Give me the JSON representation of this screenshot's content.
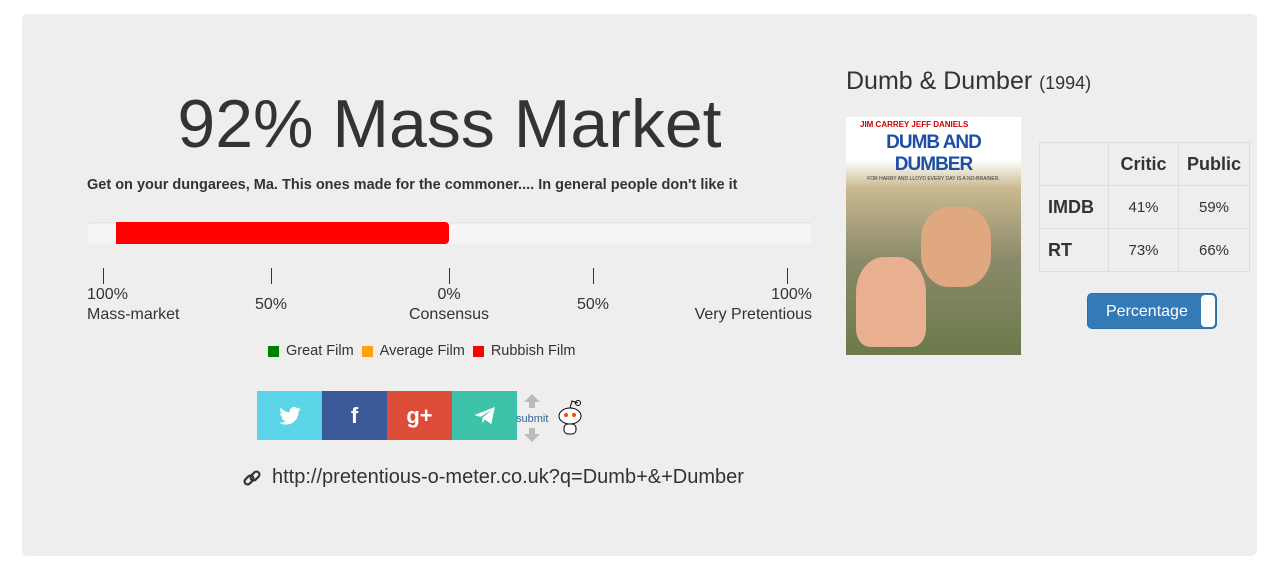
{
  "result": {
    "headline": "92% Mass Market",
    "description": "Get on your dungarees, Ma. This ones made for the commoner.... In general people don't like it",
    "mass_market_percent": 92,
    "bar_color": "#ff0000"
  },
  "scale": [
    {
      "value": "100%",
      "label": "Mass-market"
    },
    {
      "value": "50%",
      "label": ""
    },
    {
      "value": "0%",
      "label": "Consensus"
    },
    {
      "value": "50%",
      "label": ""
    },
    {
      "value": "100%",
      "label": "Very Pretentious"
    }
  ],
  "legend": [
    {
      "label": "Great Film",
      "color": "#008000"
    },
    {
      "label": "Average Film",
      "color": "#ffa500"
    },
    {
      "label": "Rubbish Film",
      "color": "#ff0000"
    }
  ],
  "share": {
    "twitter_color": "#5bd4e8",
    "facebook_color": "#3b5998",
    "google_color": "#dd4b39",
    "telegram_color": "#3cc2a9",
    "reddit_submit": "submit"
  },
  "link": {
    "url": "http://pretentious-o-meter.co.uk?q=Dumb+&+Dumber",
    "icon": "link-icon"
  },
  "film": {
    "title": "Dumb & Dumber",
    "year": "(1994)",
    "poster_text": {
      "actors": "JIM CARREY   JEFF DANIELS",
      "title": "DUMB AND DUMBER",
      "tagline": "FOR HARRY AND LLOYD EVERY DAY IS A NO-BRAINER."
    }
  },
  "ratings": {
    "headers": [
      "",
      "Critic",
      "Public"
    ],
    "rows": [
      {
        "source": "IMDB",
        "critic": "41%",
        "public": "59%"
      },
      {
        "source": "RT",
        "critic": "73%",
        "public": "66%"
      }
    ]
  },
  "toggle": {
    "label": "Percentage",
    "state": "on",
    "color": "#337ab7"
  }
}
